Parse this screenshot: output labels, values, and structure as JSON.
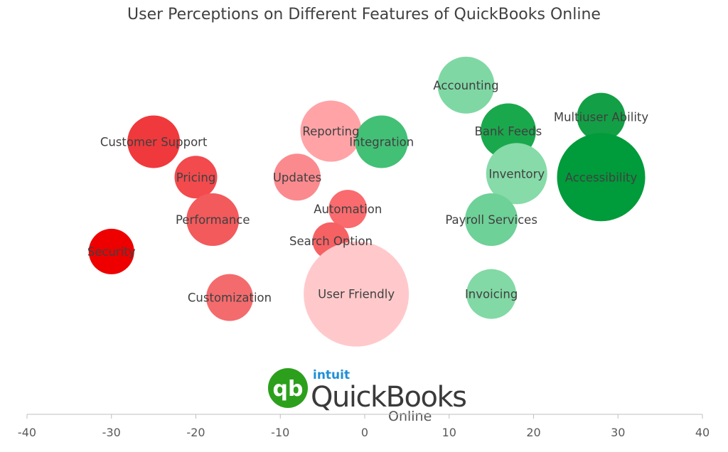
{
  "chart_data": {
    "type": "bubble",
    "title": "User Perceptions on Different Features of QuickBooks Online",
    "xlim": [
      -40,
      40
    ],
    "x_ticks": [
      -40,
      -30,
      -20,
      -10,
      0,
      10,
      20,
      30,
      40
    ],
    "grid": false,
    "points": [
      {
        "label": "Customer Support",
        "x": -25,
        "y": 62,
        "size": 37,
        "color": "#f0393c"
      },
      {
        "label": "Pricing",
        "x": -20,
        "y": 52,
        "size": 30,
        "color": "#f24a4d"
      },
      {
        "label": "Performance",
        "x": -18,
        "y": 40,
        "size": 37,
        "color": "#f25a5c"
      },
      {
        "label": "Security",
        "x": -30,
        "y": 31,
        "size": 32,
        "color": "#ee0000"
      },
      {
        "label": "Customization",
        "x": -16,
        "y": 18,
        "size": 33,
        "color": "#f46b6d"
      },
      {
        "label": "Reporting",
        "x": -4,
        "y": 65,
        "size": 43,
        "color": "#ffa3a7"
      },
      {
        "label": "Updates",
        "x": -8,
        "y": 52,
        "size": 33,
        "color": "#fb8a8e"
      },
      {
        "label": "Automation",
        "x": -2,
        "y": 43,
        "size": 27,
        "color": "#f96b6e"
      },
      {
        "label": "Search Option",
        "x": -4,
        "y": 34,
        "size": 26,
        "color": "#f66164"
      },
      {
        "label": "User Friendly",
        "x": -1,
        "y": 19,
        "size": 74,
        "color": "#ffc9cb"
      },
      {
        "label": "Integration",
        "x": 2,
        "y": 62,
        "size": 37,
        "color": "#42c075"
      },
      {
        "label": "Accounting",
        "x": 12,
        "y": 78,
        "size": 40,
        "color": "#7fd8a4"
      },
      {
        "label": "Bank Feeds",
        "x": 17,
        "y": 65,
        "size": 39,
        "color": "#1aa84c"
      },
      {
        "label": "Inventory",
        "x": 18,
        "y": 53,
        "size": 43,
        "color": "#86dba8"
      },
      {
        "label": "Payroll Services",
        "x": 15,
        "y": 40,
        "size": 37,
        "color": "#6ed197"
      },
      {
        "label": "Invoicing",
        "x": 15,
        "y": 19,
        "size": 35,
        "color": "#82d9a5"
      },
      {
        "label": "Multiuser Ability",
        "x": 28,
        "y": 69,
        "size": 34,
        "color": "#139f45"
      },
      {
        "label": "Accessibility",
        "x": 28,
        "y": 52,
        "size": 62,
        "color": "#009b3a"
      }
    ],
    "yrange": [
      -15,
      90
    ]
  },
  "logo": {
    "brand": "intuit",
    "name": "QuickBooks",
    "mark": "qb",
    "suffix": "Online",
    "circle_color": "#2ca01c",
    "brand_color": "#1f8fd6"
  }
}
